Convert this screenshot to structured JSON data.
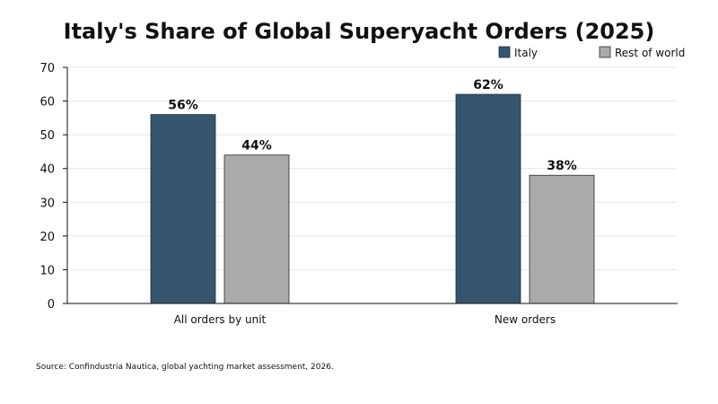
{
  "chart_data": {
    "type": "bar",
    "title": "Italy's Share of Global Superyacht Orders (2025)",
    "xlabel": "",
    "ylabel": "",
    "categories": [
      "All orders by unit",
      "New orders"
    ],
    "series": [
      {
        "name": "Italy",
        "values": [
          56,
          62
        ],
        "labels": [
          "56%",
          "62%"
        ],
        "color": "#36566f"
      },
      {
        "name": "Rest of world",
        "values": [
          44,
          38
        ],
        "labels": [
          "44%",
          "38%"
        ],
        "color": "#aaaaaa"
      }
    ],
    "ylim": [
      0,
      70
    ],
    "yticks": [
      0,
      10,
      20,
      30,
      40,
      50,
      60,
      70
    ],
    "grid": true,
    "legend_position": "top-right",
    "source": "Source: Confindustria Nautica, global yachting market assessment, 2026."
  }
}
